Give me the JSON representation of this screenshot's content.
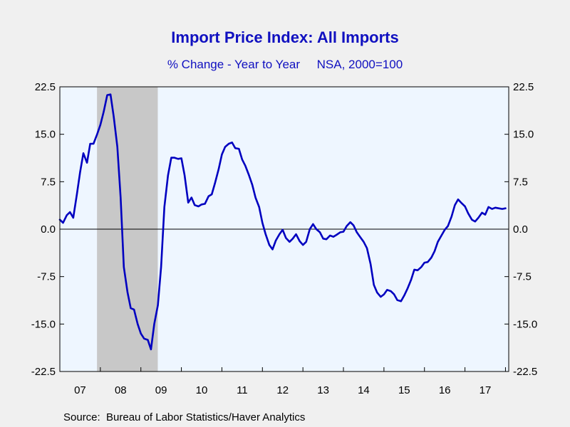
{
  "chart_data": {
    "type": "line",
    "title": "Import Price Index: All Imports",
    "subtitle": "% Change - Year to Year     NSA, 2000=100",
    "source": "Source:  Bureau of Labor Statistics/Haver Analytics",
    "y_ticks": [
      "22.5",
      "15.0",
      "7.5",
      "0.0",
      "-7.5",
      "-15.0",
      "-22.5"
    ],
    "y_tick_values": [
      22.5,
      15.0,
      7.5,
      0.0,
      -7.5,
      -15.0,
      -22.5
    ],
    "x_ticks": [
      "07",
      "08",
      "09",
      "10",
      "11",
      "12",
      "13",
      "14",
      "15",
      "16",
      "17"
    ],
    "ylim": [
      -22.5,
      22.5
    ],
    "xlim": [
      2007.0,
      2018.08
    ],
    "recession": [
      2007.917,
      2009.417
    ],
    "zero_line": true,
    "legend": "none",
    "series": [
      {
        "color": "#0000c0",
        "x": [
          2007.0,
          2007.08,
          2007.17,
          2007.25,
          2007.33,
          2007.42,
          2007.5,
          2007.58,
          2007.67,
          2007.75,
          2007.83,
          2007.92,
          2008.0,
          2008.08,
          2008.17,
          2008.25,
          2008.33,
          2008.42,
          2008.5,
          2008.58,
          2008.67,
          2008.75,
          2008.83,
          2008.92,
          2009.0,
          2009.08,
          2009.17,
          2009.25,
          2009.33,
          2009.42,
          2009.5,
          2009.58,
          2009.67,
          2009.75,
          2009.83,
          2009.92,
          2010.0,
          2010.08,
          2010.17,
          2010.25,
          2010.33,
          2010.42,
          2010.5,
          2010.58,
          2010.67,
          2010.75,
          2010.83,
          2010.92,
          2011.0,
          2011.08,
          2011.17,
          2011.25,
          2011.33,
          2011.42,
          2011.5,
          2011.58,
          2011.67,
          2011.75,
          2011.83,
          2011.92,
          2012.0,
          2012.08,
          2012.17,
          2012.25,
          2012.33,
          2012.42,
          2012.5,
          2012.58,
          2012.67,
          2012.75,
          2012.83,
          2012.92,
          2013.0,
          2013.08,
          2013.17,
          2013.25,
          2013.33,
          2013.42,
          2013.5,
          2013.58,
          2013.67,
          2013.75,
          2013.83,
          2013.92,
          2014.0,
          2014.08,
          2014.17,
          2014.25,
          2014.33,
          2014.42,
          2014.5,
          2014.58,
          2014.67,
          2014.75,
          2014.83,
          2014.92,
          2015.0,
          2015.08,
          2015.17,
          2015.25,
          2015.33,
          2015.42,
          2015.5,
          2015.58,
          2015.67,
          2015.75,
          2015.83,
          2015.92,
          2016.0,
          2016.08,
          2016.17,
          2016.25,
          2016.33,
          2016.42,
          2016.5,
          2016.58,
          2016.67,
          2016.75,
          2016.83,
          2016.92,
          2017.0,
          2017.08,
          2017.17,
          2017.25,
          2017.33,
          2017.42,
          2017.5,
          2017.58,
          2017.67,
          2017.75,
          2017.83,
          2017.92,
          2018.0
        ],
        "y": [
          1.5,
          1.0,
          2.2,
          2.7,
          1.8,
          5.5,
          9.0,
          12.0,
          10.5,
          13.5,
          13.5,
          15.0,
          16.5,
          18.5,
          21.2,
          21.3,
          17.8,
          13.0,
          5.0,
          -6.0,
          -10.0,
          -12.5,
          -12.7,
          -15.0,
          -16.5,
          -17.3,
          -17.5,
          -19.0,
          -15.0,
          -12.0,
          -6.0,
          3.5,
          8.5,
          11.3,
          11.3,
          11.1,
          11.2,
          8.5,
          4.2,
          5.0,
          3.8,
          3.6,
          3.9,
          4.0,
          5.2,
          5.5,
          7.3,
          9.5,
          11.8,
          13.0,
          13.5,
          13.7,
          12.8,
          12.7,
          11.0,
          10.0,
          8.5,
          7.0,
          5.0,
          3.5,
          1.0,
          -0.8,
          -2.5,
          -3.2,
          -1.8,
          -0.8,
          -0.1,
          -1.4,
          -2.0,
          -1.5,
          -0.8,
          -1.9,
          -2.5,
          -2.0,
          0.0,
          0.8,
          0.0,
          -0.5,
          -1.5,
          -1.6,
          -1.0,
          -1.2,
          -0.9,
          -0.5,
          -0.4,
          0.5,
          1.1,
          0.6,
          -0.5,
          -1.3,
          -2.0,
          -3.0,
          -5.5,
          -8.8,
          -10.0,
          -10.7,
          -10.3,
          -9.6,
          -9.8,
          -10.3,
          -11.2,
          -11.4,
          -10.5,
          -9.4,
          -8.0,
          -6.4,
          -6.5,
          -6.0,
          -5.3,
          -5.2,
          -4.5,
          -3.5,
          -2.0,
          -1.0,
          -0.1,
          0.5,
          2.0,
          3.8,
          4.7,
          4.1,
          3.6,
          2.5,
          1.5,
          1.2,
          1.8,
          2.6,
          2.3,
          3.5,
          3.2,
          3.4,
          3.3,
          3.2,
          3.3
        ]
      }
    ]
  }
}
